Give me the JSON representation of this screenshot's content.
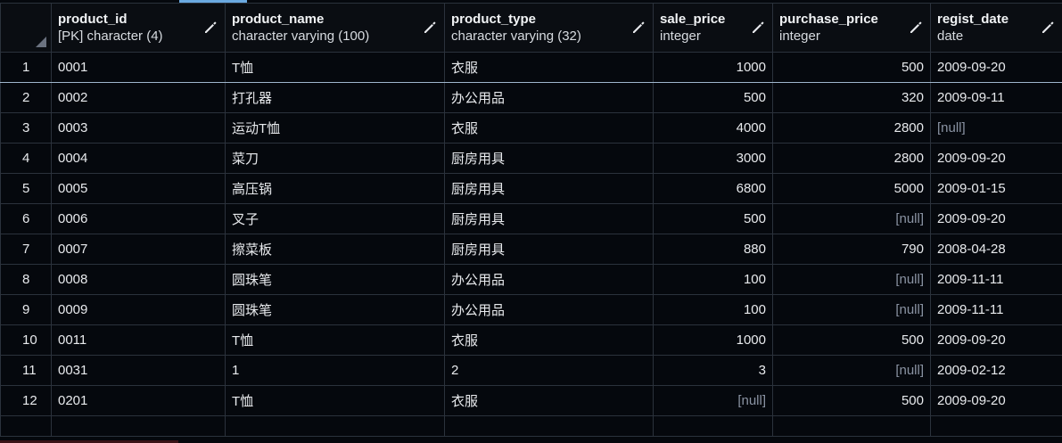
{
  "columns": [
    {
      "name": "product_id",
      "type": "[PK] character (4)"
    },
    {
      "name": "product_name",
      "type": "character varying (100)"
    },
    {
      "name": "product_type",
      "type": "character varying (32)"
    },
    {
      "name": "sale_price",
      "type": "integer"
    },
    {
      "name": "purchase_price",
      "type": "integer"
    },
    {
      "name": "regist_date",
      "type": "date"
    }
  ],
  "rows": [
    {
      "n": "1",
      "product_id": "0001",
      "product_name": "T恤",
      "product_type": "衣服",
      "sale_price": "1000",
      "purchase_price": "500",
      "regist_date": "2009-09-20"
    },
    {
      "n": "2",
      "product_id": "0002",
      "product_name": "打孔器",
      "product_type": "办公用品",
      "sale_price": "500",
      "purchase_price": "320",
      "regist_date": "2009-09-11"
    },
    {
      "n": "3",
      "product_id": "0003",
      "product_name": "运动T恤",
      "product_type": "衣服",
      "sale_price": "4000",
      "purchase_price": "2800",
      "regist_date": "[null]"
    },
    {
      "n": "4",
      "product_id": "0004",
      "product_name": "菜刀",
      "product_type": "厨房用具",
      "sale_price": "3000",
      "purchase_price": "2800",
      "regist_date": "2009-09-20"
    },
    {
      "n": "5",
      "product_id": "0005",
      "product_name": "高压锅",
      "product_type": "厨房用具",
      "sale_price": "6800",
      "purchase_price": "5000",
      "regist_date": "2009-01-15"
    },
    {
      "n": "6",
      "product_id": "0006",
      "product_name": "叉子",
      "product_type": "厨房用具",
      "sale_price": "500",
      "purchase_price": "[null]",
      "regist_date": "2009-09-20"
    },
    {
      "n": "7",
      "product_id": "0007",
      "product_name": "擦菜板",
      "product_type": "厨房用具",
      "sale_price": "880",
      "purchase_price": "790",
      "regist_date": "2008-04-28"
    },
    {
      "n": "8",
      "product_id": "0008",
      "product_name": "圆珠笔",
      "product_type": "办公用品",
      "sale_price": "100",
      "purchase_price": "[null]",
      "regist_date": "2009-11-11"
    },
    {
      "n": "9",
      "product_id": "0009",
      "product_name": "圆珠笔",
      "product_type": "办公用品",
      "sale_price": "100",
      "purchase_price": "[null]",
      "regist_date": "2009-11-11"
    },
    {
      "n": "10",
      "product_id": "0011",
      "product_name": "T恤",
      "product_type": "衣服",
      "sale_price": "1000",
      "purchase_price": "500",
      "regist_date": "2009-09-20"
    },
    {
      "n": "11",
      "product_id": "0031",
      "product_name": "1",
      "product_type": "2",
      "sale_price": "3",
      "purchase_price": "[null]",
      "regist_date": "2009-02-12"
    },
    {
      "n": "12",
      "product_id": "0201",
      "product_name": "T恤",
      "product_type": "衣服",
      "sale_price": "[null]",
      "purchase_price": "500",
      "regist_date": "2009-09-20"
    }
  ],
  "null_color": "#8a93a3",
  "background_color": "#05080d",
  "grid_color": "#2b323c",
  "edit_icon": "pencil-icon",
  "select_all_icon": "corner-triangle-icon"
}
